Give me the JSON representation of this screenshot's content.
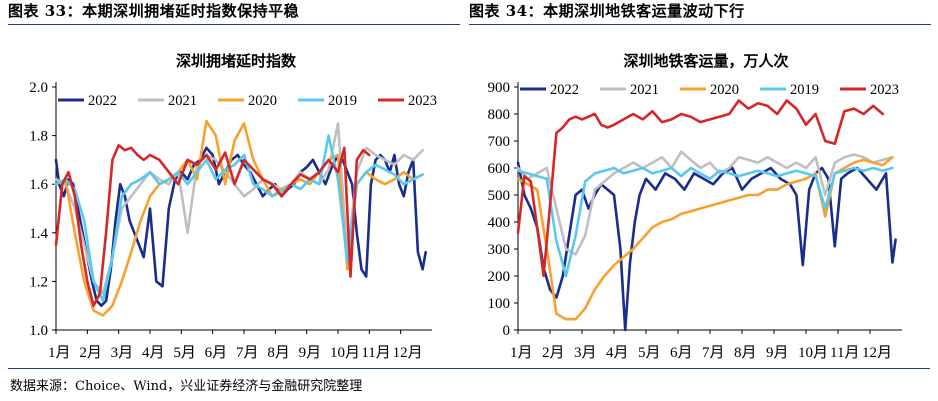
{
  "header": {
    "left_caption": "图表 33：本期深圳拥堵延时指数保持平稳",
    "right_caption": "图表 34：本期深圳地铁客运量波动下行"
  },
  "footer": {
    "source": "数据来源：Choice、Wind，兴业证券经济与金融研究院整理"
  },
  "colors": {
    "2022": "#1a2d8c",
    "2021": "#bfbfbf",
    "2020": "#f7a12f",
    "2019": "#58c8f0",
    "2023": "#d62728",
    "caption_rule": "#1f3c88"
  },
  "chart_data": [
    {
      "type": "line",
      "title": "深圳拥堵延时指数",
      "x_tick_labels": [
        "1月",
        "2月",
        "3月",
        "4月",
        "5月",
        "6月",
        "7月",
        "8月",
        "9月",
        "10月",
        "11月",
        "12月"
      ],
      "ylim": [
        1.0,
        2.0
      ],
      "y_ticks": [
        "1.0",
        "1.2",
        "1.4",
        "1.6",
        "1.8",
        "2.0"
      ],
      "legend": [
        "2022",
        "2021",
        "2020",
        "2019",
        "2023"
      ],
      "legend_position": "top",
      "grid": false,
      "series": [
        {
          "name": "2022",
          "x": [
            0,
            0.1,
            0.25,
            0.4,
            0.55,
            0.7,
            0.85,
            1.0,
            1.15,
            1.3,
            1.45,
            1.6,
            1.75,
            1.9,
            2.05,
            2.2,
            2.35,
            2.5,
            2.65,
            2.8,
            3.0,
            3.2,
            3.4,
            3.6,
            3.8,
            4.0,
            4.2,
            4.4,
            4.6,
            4.8,
            5.0,
            5.2,
            5.4,
            5.6,
            5.8,
            6.0,
            6.2,
            6.4,
            6.6,
            6.8,
            7.0,
            7.2,
            7.4,
            7.6,
            7.8,
            8.0,
            8.2,
            8.4,
            8.6,
            8.8,
            9.0,
            9.15,
            9.3,
            9.45,
            9.6,
            9.75,
            9.9,
            10.05,
            10.2,
            10.35,
            10.5,
            10.65,
            10.8,
            10.95,
            11.1,
            11.25,
            11.4,
            11.55,
            11.7,
            11.8
          ],
          "y": [
            1.7,
            1.6,
            1.55,
            1.62,
            1.6,
            1.5,
            1.4,
            1.3,
            1.2,
            1.12,
            1.1,
            1.12,
            1.25,
            1.45,
            1.6,
            1.55,
            1.45,
            1.4,
            1.35,
            1.3,
            1.5,
            1.2,
            1.18,
            1.5,
            1.62,
            1.65,
            1.62,
            1.68,
            1.7,
            1.75,
            1.72,
            1.6,
            1.65,
            1.7,
            1.72,
            1.68,
            1.65,
            1.6,
            1.55,
            1.58,
            1.6,
            1.55,
            1.58,
            1.6,
            1.65,
            1.67,
            1.7,
            1.65,
            1.6,
            1.67,
            1.72,
            1.7,
            1.65,
            1.6,
            1.4,
            1.25,
            1.22,
            1.6,
            1.7,
            1.72,
            1.7,
            1.65,
            1.72,
            1.6,
            1.55,
            1.65,
            1.7,
            1.32,
            1.25,
            1.32
          ]
        },
        {
          "name": "2021",
          "x": [
            0,
            0.3,
            0.6,
            0.9,
            1.2,
            1.5,
            1.8,
            2.1,
            2.4,
            2.7,
            3.0,
            3.3,
            3.6,
            3.9,
            4.2,
            4.5,
            4.8,
            5.1,
            5.4,
            5.7,
            6.0,
            6.3,
            6.6,
            6.9,
            7.2,
            7.5,
            7.8,
            8.1,
            8.4,
            8.7,
            9.0,
            9.3,
            9.6,
            9.9,
            10.2,
            10.5,
            10.8,
            11.1,
            11.4,
            11.7
          ],
          "y": [
            1.62,
            1.6,
            1.5,
            1.35,
            1.2,
            1.15,
            1.3,
            1.5,
            1.55,
            1.6,
            1.65,
            1.62,
            1.6,
            1.65,
            1.4,
            1.68,
            1.72,
            1.7,
            1.65,
            1.6,
            1.55,
            1.58,
            1.62,
            1.6,
            1.58,
            1.6,
            1.65,
            1.62,
            1.6,
            1.66,
            1.85,
            1.3,
            1.65,
            1.75,
            1.72,
            1.7,
            1.68,
            1.72,
            1.7,
            1.74
          ]
        },
        {
          "name": "2020",
          "x": [
            0,
            0.3,
            0.6,
            0.9,
            1.2,
            1.5,
            1.8,
            2.1,
            2.4,
            2.7,
            3.0,
            3.3,
            3.6,
            3.9,
            4.2,
            4.5,
            4.8,
            5.1,
            5.4,
            5.7,
            6.0,
            6.3,
            6.6,
            6.9,
            7.2,
            7.5,
            7.8,
            8.1,
            8.4,
            8.7,
            9.0,
            9.3,
            9.6,
            9.9,
            10.2,
            10.5,
            10.8,
            11.1,
            11.4,
            11.7
          ],
          "y": [
            1.6,
            1.62,
            1.4,
            1.2,
            1.08,
            1.06,
            1.1,
            1.2,
            1.32,
            1.45,
            1.55,
            1.6,
            1.62,
            1.65,
            1.7,
            1.62,
            1.86,
            1.8,
            1.6,
            1.78,
            1.85,
            1.7,
            1.62,
            1.55,
            1.58,
            1.6,
            1.62,
            1.6,
            1.65,
            1.7,
            1.72,
            1.25,
            1.6,
            1.65,
            1.62,
            1.6,
            1.62,
            1.65,
            1.62,
            1.64
          ]
        },
        {
          "name": "2019",
          "x": [
            0,
            0.3,
            0.6,
            0.9,
            1.2,
            1.5,
            1.8,
            2.1,
            2.4,
            2.7,
            3.0,
            3.3,
            3.6,
            3.9,
            4.2,
            4.5,
            4.8,
            5.1,
            5.4,
            5.7,
            6.0,
            6.3,
            6.6,
            6.9,
            7.2,
            7.5,
            7.8,
            8.1,
            8.4,
            8.7,
            9.0,
            9.3,
            9.6,
            9.9,
            10.2,
            10.5,
            10.8,
            11.1,
            11.4,
            11.7
          ],
          "y": [
            1.6,
            1.62,
            1.58,
            1.45,
            1.2,
            1.12,
            1.3,
            1.55,
            1.6,
            1.62,
            1.65,
            1.6,
            1.62,
            1.65,
            1.6,
            1.65,
            1.7,
            1.62,
            1.66,
            1.68,
            1.72,
            1.6,
            1.58,
            1.55,
            1.57,
            1.6,
            1.58,
            1.62,
            1.6,
            1.8,
            1.62,
            1.28,
            1.6,
            1.65,
            1.68,
            1.66,
            1.64,
            1.6,
            1.62,
            1.64
          ]
        },
        {
          "name": "2023",
          "x": [
            0,
            0.2,
            0.4,
            0.6,
            0.8,
            1.0,
            1.2,
            1.4,
            1.6,
            1.8,
            2.0,
            2.2,
            2.4,
            2.6,
            2.8,
            3.0,
            3.3,
            3.6,
            3.9,
            4.2,
            4.5,
            4.8,
            5.1,
            5.4,
            5.7,
            6.0,
            6.3,
            6.6,
            6.9,
            7.2,
            7.5,
            7.8,
            8.1,
            8.4,
            8.7,
            9.0,
            9.2,
            9.4,
            9.6,
            9.8,
            10.0
          ],
          "y": [
            1.35,
            1.6,
            1.65,
            1.55,
            1.35,
            1.2,
            1.1,
            1.15,
            1.4,
            1.7,
            1.76,
            1.74,
            1.75,
            1.72,
            1.7,
            1.72,
            1.7,
            1.65,
            1.6,
            1.7,
            1.68,
            1.72,
            1.66,
            1.73,
            1.6,
            1.7,
            1.66,
            1.62,
            1.6,
            1.55,
            1.6,
            1.64,
            1.62,
            1.65,
            1.7,
            1.65,
            1.75,
            1.22,
            1.7,
            1.74,
            1.72
          ]
        }
      ]
    },
    {
      "type": "line",
      "title": "深圳地铁客运量，万人次",
      "x_tick_labels": [
        "1月",
        "2月",
        "3月",
        "4月",
        "5月",
        "6月",
        "7月",
        "8月",
        "9月",
        "10月",
        "11月",
        "12月"
      ],
      "ylim": [
        0,
        900
      ],
      "y_ticks": [
        "0",
        "100",
        "200",
        "300",
        "400",
        "500",
        "600",
        "700",
        "800",
        "900"
      ],
      "legend": [
        "2022",
        "2021",
        "2020",
        "2019",
        "2023"
      ],
      "legend_position": "top",
      "grid": false,
      "series": [
        {
          "name": "2022",
          "x": [
            0,
            0.2,
            0.4,
            0.6,
            0.8,
            1.0,
            1.2,
            1.4,
            1.6,
            1.8,
            2.0,
            2.2,
            2.4,
            2.6,
            2.8,
            3.0,
            3.2,
            3.35,
            3.5,
            3.65,
            3.8,
            4.0,
            4.3,
            4.6,
            4.9,
            5.2,
            5.5,
            5.8,
            6.1,
            6.4,
            6.7,
            7.0,
            7.3,
            7.6,
            7.9,
            8.2,
            8.5,
            8.7,
            8.9,
            9.1,
            9.3,
            9.5,
            9.7,
            9.9,
            10.1,
            10.3,
            10.6,
            10.9,
            11.2,
            11.5,
            11.7,
            11.8
          ],
          "y": [
            620,
            500,
            450,
            380,
            230,
            150,
            120,
            200,
            350,
            500,
            520,
            450,
            500,
            540,
            520,
            500,
            300,
            0,
            250,
            400,
            500,
            560,
            520,
            580,
            560,
            520,
            580,
            560,
            540,
            580,
            600,
            520,
            560,
            580,
            600,
            560,
            540,
            500,
            240,
            520,
            580,
            600,
            560,
            310,
            560,
            580,
            600,
            560,
            520,
            580,
            250,
            335
          ]
        },
        {
          "name": "2021",
          "x": [
            0,
            0.3,
            0.6,
            0.9,
            1.2,
            1.5,
            1.8,
            2.1,
            2.4,
            2.7,
            3.0,
            3.3,
            3.6,
            3.9,
            4.2,
            4.5,
            4.8,
            5.1,
            5.4,
            5.7,
            6.0,
            6.3,
            6.6,
            6.9,
            7.2,
            7.5,
            7.8,
            8.1,
            8.4,
            8.7,
            9.0,
            9.3,
            9.6,
            9.9,
            10.2,
            10.5,
            10.8,
            11.1,
            11.4,
            11.7
          ],
          "y": [
            600,
            560,
            580,
            600,
            450,
            300,
            280,
            350,
            520,
            550,
            580,
            600,
            620,
            600,
            620,
            640,
            600,
            660,
            630,
            600,
            620,
            580,
            600,
            640,
            630,
            620,
            640,
            620,
            600,
            620,
            600,
            640,
            500,
            620,
            640,
            650,
            640,
            620,
            630,
            640
          ]
        },
        {
          "name": "2020",
          "x": [
            0,
            0.3,
            0.6,
            0.9,
            1.2,
            1.5,
            1.8,
            2.1,
            2.4,
            2.7,
            3.0,
            3.3,
            3.6,
            3.9,
            4.2,
            4.5,
            4.8,
            5.1,
            5.4,
            5.7,
            6.0,
            6.3,
            6.6,
            6.9,
            7.2,
            7.5,
            7.8,
            8.1,
            8.4,
            8.7,
            9.0,
            9.3,
            9.6,
            9.9,
            10.2,
            10.5,
            10.8,
            11.1,
            11.4,
            11.7
          ],
          "y": [
            560,
            540,
            520,
            300,
            60,
            40,
            40,
            80,
            150,
            200,
            240,
            270,
            300,
            340,
            380,
            400,
            410,
            430,
            440,
            450,
            460,
            470,
            480,
            490,
            500,
            500,
            520,
            520,
            540,
            550,
            560,
            580,
            420,
            580,
            600,
            620,
            630,
            620,
            610,
            640
          ]
        },
        {
          "name": "2019",
          "x": [
            0,
            0.3,
            0.6,
            0.9,
            1.2,
            1.5,
            1.8,
            2.1,
            2.4,
            2.7,
            3.0,
            3.3,
            3.6,
            3.9,
            4.2,
            4.5,
            4.8,
            5.1,
            5.4,
            5.7,
            6.0,
            6.3,
            6.6,
            6.9,
            7.2,
            7.5,
            7.8,
            8.1,
            8.4,
            8.7,
            9.0,
            9.3,
            9.6,
            9.9,
            10.2,
            10.5,
            10.8,
            11.1,
            11.4,
            11.7
          ],
          "y": [
            590,
            580,
            570,
            560,
            330,
            200,
            350,
            550,
            580,
            590,
            600,
            580,
            590,
            600,
            580,
            590,
            600,
            570,
            600,
            580,
            560,
            590,
            580,
            570,
            580,
            590,
            580,
            570,
            580,
            590,
            580,
            570,
            450,
            580,
            590,
            600,
            590,
            600,
            590,
            600
          ]
        },
        {
          "name": "2023",
          "x": [
            0,
            0.2,
            0.4,
            0.6,
            0.8,
            1.0,
            1.2,
            1.4,
            1.6,
            1.8,
            2.0,
            2.2,
            2.4,
            2.6,
            2.8,
            3.0,
            3.3,
            3.6,
            3.9,
            4.2,
            4.5,
            4.8,
            5.1,
            5.4,
            5.7,
            6.0,
            6.3,
            6.6,
            6.9,
            7.2,
            7.5,
            7.8,
            8.1,
            8.4,
            8.7,
            9.0,
            9.3,
            9.6,
            9.9,
            10.2,
            10.5,
            10.8,
            11.1,
            11.4
          ],
          "y": [
            360,
            570,
            550,
            380,
            200,
            460,
            730,
            750,
            780,
            790,
            780,
            790,
            800,
            760,
            750,
            760,
            780,
            800,
            780,
            810,
            770,
            780,
            800,
            790,
            770,
            780,
            790,
            800,
            850,
            820,
            840,
            830,
            800,
            850,
            820,
            760,
            800,
            700,
            690,
            810,
            820,
            800,
            830,
            800
          ]
        }
      ]
    }
  ]
}
